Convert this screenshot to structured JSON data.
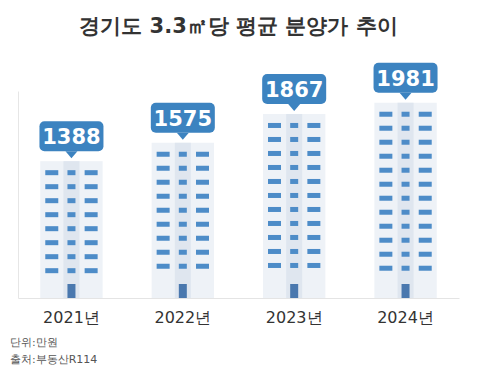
{
  "chart_data": {
    "type": "bar",
    "title": "경기도 3.3㎡당 평균 분양가 추이",
    "categories": [
      "2021년",
      "2022년",
      "2023년",
      "2024년"
    ],
    "values": [
      1388,
      1575,
      1867,
      1981
    ],
    "color": "#eef2f7",
    "ylim": [
      0,
      2100
    ],
    "data_labels": true,
    "tick_labels": "x",
    "grid": false,
    "annotations": [
      "단위:만원",
      "출처:부동산R114"
    ]
  }
}
